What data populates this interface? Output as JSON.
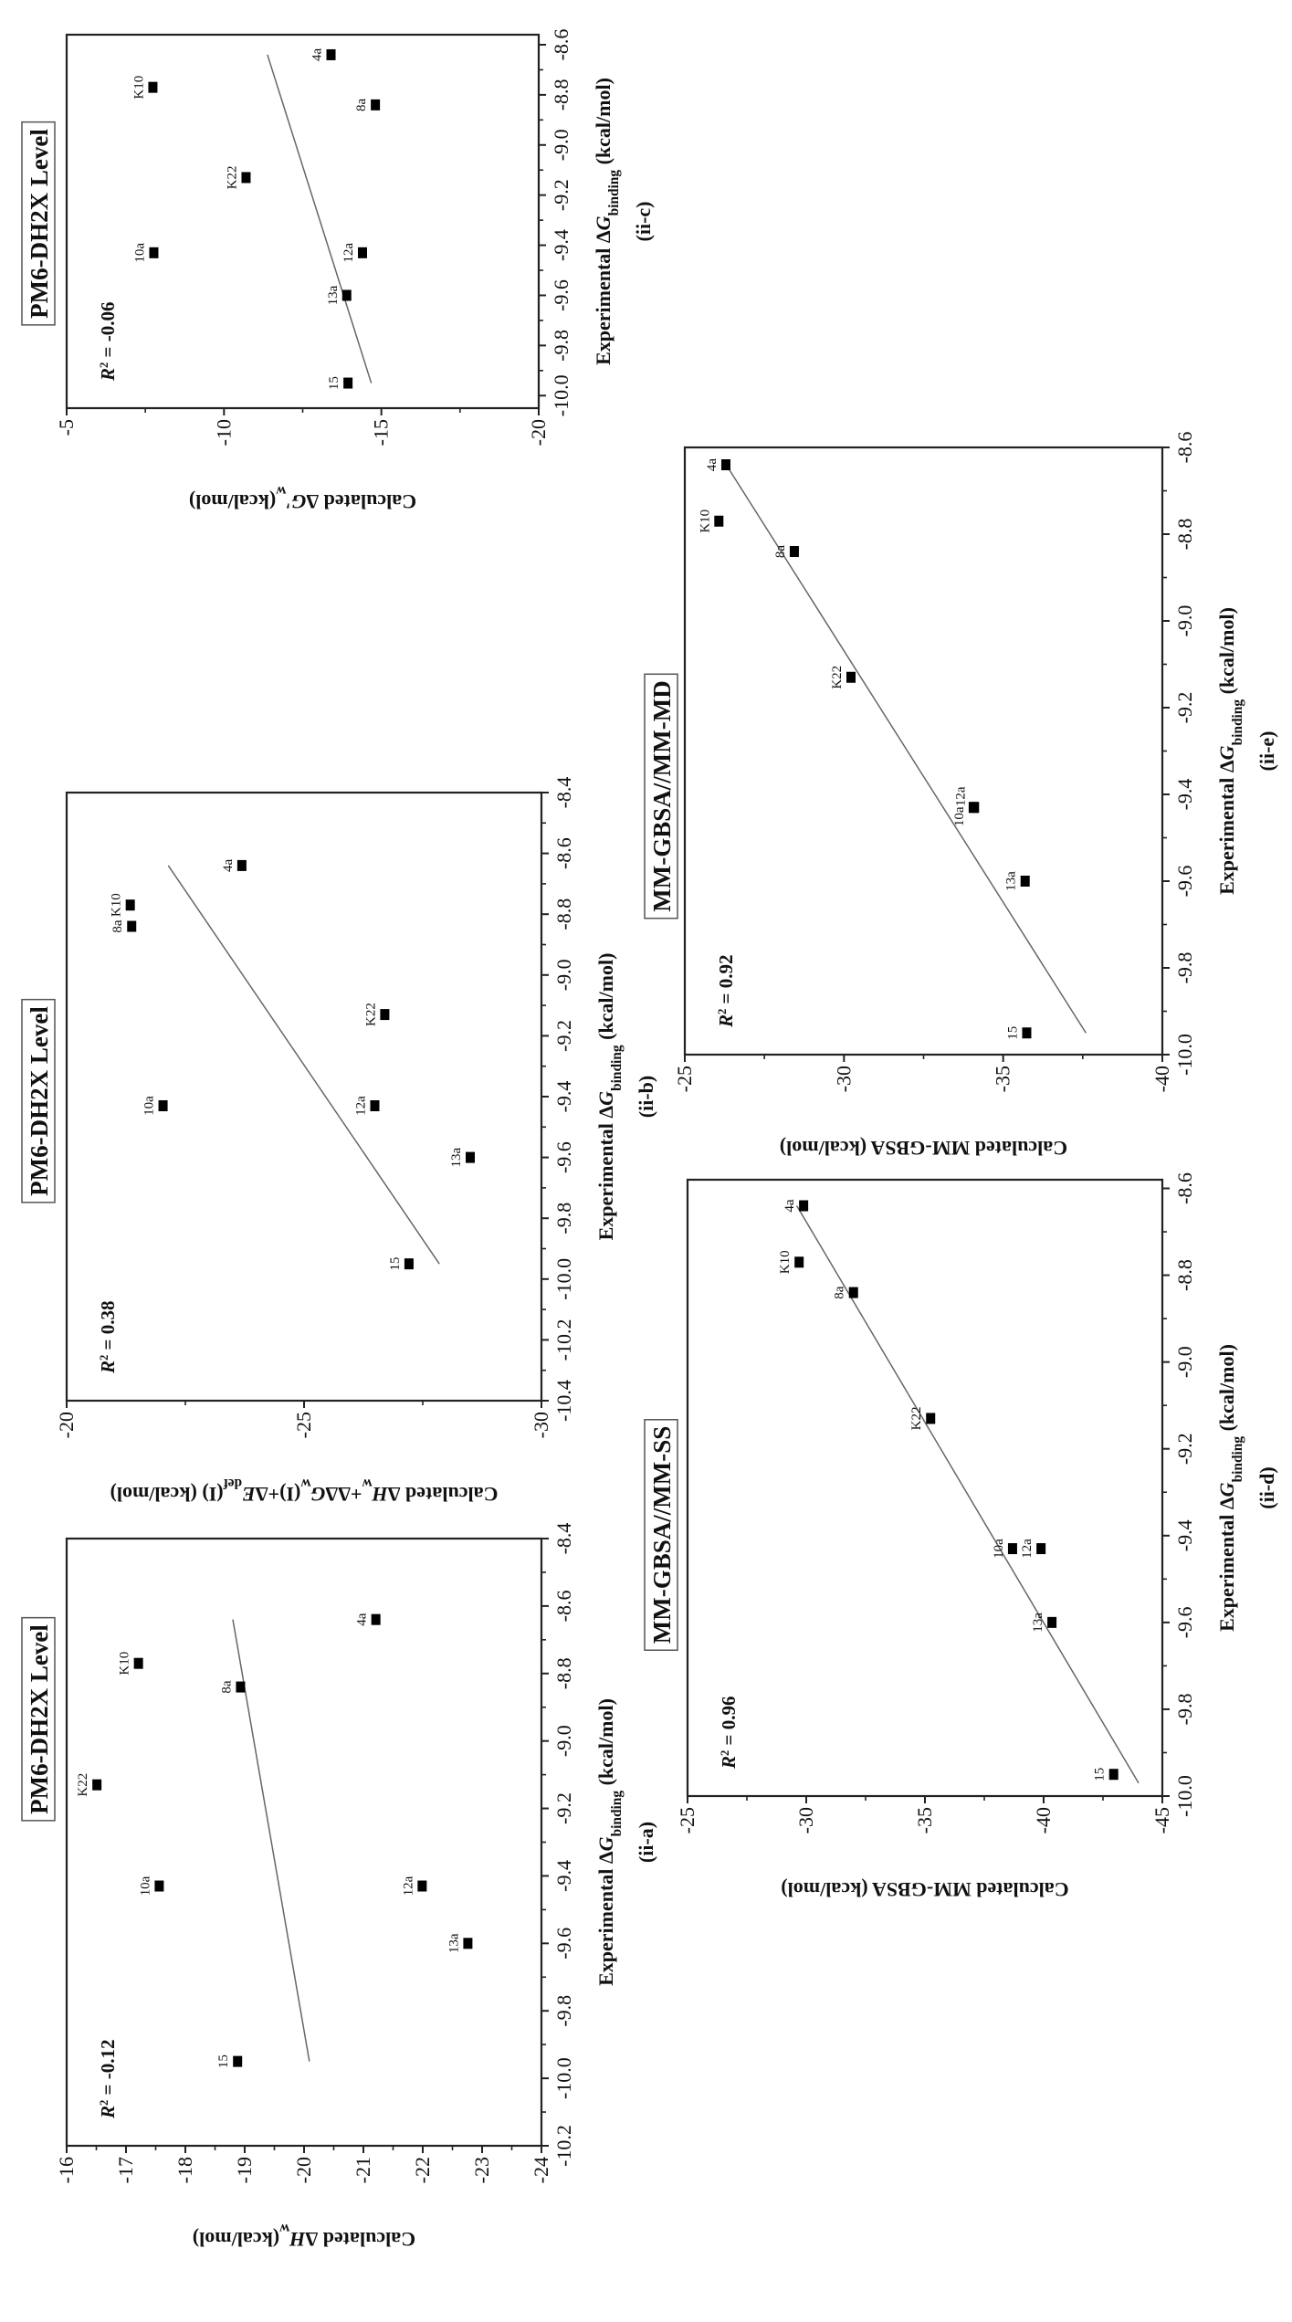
{
  "chart_data": [
    {
      "type": "scatter",
      "panel_id": "(ii-a)",
      "title": "PM6-DH2X Level",
      "r2": [
        {
          "t": "R",
          "i": true
        },
        {
          "t": "2",
          "sup": true
        },
        {
          "t": " = -0.12"
        }
      ],
      "xlabel": [
        {
          "t": "Experimental Δ"
        },
        {
          "t": "G",
          "i": true
        },
        {
          "t": "binding",
          "sub": true
        },
        {
          "t": " (kcal/mol)"
        }
      ],
      "ylabel": [
        {
          "t": "Calculated Δ"
        },
        {
          "t": "H",
          "i": true
        },
        {
          "t": "w",
          "sub": true
        },
        {
          "t": "(kcal/mol)"
        }
      ],
      "xlim": [
        -10.2,
        -8.4
      ],
      "ylim": [
        -16,
        -24
      ],
      "xticks": [
        "-10.2",
        "-10.0",
        "-9.8",
        "-9.6",
        "-9.4",
        "-9.2",
        "-9.0",
        "-8.8",
        "-8.6",
        "-8.4"
      ],
      "yticks": [
        "-16",
        "-17",
        "-18",
        "-19",
        "-20",
        "-21",
        "-22",
        "-23",
        "-24"
      ],
      "points": [
        {
          "label": "4a",
          "x": -8.64,
          "y": -21.21
        },
        {
          "label": "K10",
          "x": -8.77,
          "y": -17.21
        },
        {
          "label": "8a",
          "x": -8.84,
          "y": -18.93
        },
        {
          "label": "K22",
          "x": -9.13,
          "y": -16.51
        },
        {
          "label": "10a",
          "x": -9.43,
          "y": -17.56
        },
        {
          "label": "12a",
          "x": -9.43,
          "y": -21.99
        },
        {
          "label": "13a",
          "x": -9.6,
          "y": -22.76
        },
        {
          "label": "15",
          "x": -9.95,
          "y": -18.88
        }
      ],
      "fit_line": [
        [
          -9.95,
          -20.09
        ],
        [
          -8.64,
          -18.8
        ]
      ],
      "grid": false
    },
    {
      "type": "scatter",
      "panel_id": "(ii-b)",
      "title": "PM6-DH2X Level",
      "r2": [
        {
          "t": "R",
          "i": true
        },
        {
          "t": "2",
          "sup": true
        },
        {
          "t": " = 0.38"
        }
      ],
      "xlabel": [
        {
          "t": "Experimental Δ"
        },
        {
          "t": "G",
          "i": true
        },
        {
          "t": "binding",
          "sub": true
        },
        {
          "t": " (kcal/mol)"
        }
      ],
      "ylabel": [
        {
          "t": "Calculated Δ"
        },
        {
          "t": "H",
          "i": true
        },
        {
          "t": "w",
          "sub": true
        },
        {
          "t": "+ΔΔ"
        },
        {
          "t": "G",
          "i": true
        },
        {
          "t": "w",
          "sub": true
        },
        {
          "t": "(I)+Δ"
        },
        {
          "t": "E",
          "i": true
        },
        {
          "t": "def",
          "sub": true
        },
        {
          "t": "(I) (kcal/mol)"
        }
      ],
      "xlim": [
        -10.4,
        -8.4
      ],
      "ylim": [
        -20,
        -30
      ],
      "xticks": [
        "-10.4",
        "-10.2",
        "-10.0",
        "-9.8",
        "-9.6",
        "-9.4",
        "-9.2",
        "-9.0",
        "-8.8",
        "-8.6",
        "-8.4"
      ],
      "yticks": [
        "-20",
        "-25",
        "-30"
      ],
      "points": [
        {
          "label": "4a",
          "x": -8.64,
          "y": -23.69
        },
        {
          "label": "K10",
          "x": -8.77,
          "y": -21.34
        },
        {
          "label": "8a",
          "x": -8.84,
          "y": -21.37
        },
        {
          "label": "K22",
          "x": -9.13,
          "y": -26.7
        },
        {
          "label": "10a",
          "x": -9.43,
          "y": -22.03
        },
        {
          "label": "12a",
          "x": -9.43,
          "y": -26.49
        },
        {
          "label": "13a",
          "x": -9.6,
          "y": -28.5
        },
        {
          "label": "15",
          "x": -9.95,
          "y": -27.21
        }
      ],
      "fit_line": [
        [
          -9.95,
          -27.85
        ],
        [
          -8.64,
          -22.14
        ]
      ],
      "grid": false
    },
    {
      "type": "scatter",
      "panel_id": "(ii-c)",
      "title": "PM6-DH2X Level",
      "r2": [
        {
          "t": "R",
          "i": true
        },
        {
          "t": "2",
          "sup": true
        },
        {
          "t": " = -0.06"
        }
      ],
      "xlabel": [
        {
          "t": "Experimental Δ"
        },
        {
          "t": "G",
          "i": true
        },
        {
          "t": "binding",
          "sub": true
        },
        {
          "t": " (kcal/mol)"
        }
      ],
      "ylabel": [
        {
          "t": "Calculated Δ"
        },
        {
          "t": "G'",
          "i": true
        },
        {
          "t": "w",
          "sub": true
        },
        {
          "t": "(kcal/mol)"
        }
      ],
      "xlim": [
        -10.05,
        -8.56
      ],
      "ylim": [
        -5,
        -20
      ],
      "xticks": [
        "-10.0",
        "-9.8",
        "-9.6",
        "-9.4",
        "-9.2",
        "-9.0",
        "-8.8",
        "-8.6"
      ],
      "yticks": [
        "-5",
        "-10",
        "-15",
        "-20"
      ],
      "points": [
        {
          "label": "4a",
          "x": -8.64,
          "y": -13.4
        },
        {
          "label": "K10",
          "x": -8.77,
          "y": -7.74
        },
        {
          "label": "8a",
          "x": -8.84,
          "y": -14.81
        },
        {
          "label": "K22",
          "x": -9.13,
          "y": -10.7
        },
        {
          "label": "10a",
          "x": -9.43,
          "y": -7.77
        },
        {
          "label": "12a",
          "x": -9.43,
          "y": -14.4
        },
        {
          "label": "13a",
          "x": -9.6,
          "y": -13.9
        },
        {
          "label": "15",
          "x": -9.95,
          "y": -13.94
        }
      ],
      "fit_line": [
        [
          -9.95,
          -14.68
        ],
        [
          -8.64,
          -11.38
        ]
      ],
      "grid": false
    },
    {
      "type": "scatter",
      "panel_id": "(ii-d)",
      "title": "MM-GBSA//MM-SS",
      "r2": [
        {
          "t": "R",
          "i": true
        },
        {
          "t": "2",
          "sup": true
        },
        {
          "t": " = 0.96"
        }
      ],
      "xlabel": [
        {
          "t": "Experimental Δ"
        },
        {
          "t": "G",
          "i": true
        },
        {
          "t": "binding",
          "sub": true
        },
        {
          "t": " (kcal/mol)"
        }
      ],
      "ylabel": [
        {
          "t": "Calculated MM-GBSA (kcal/mol)"
        }
      ],
      "xlim": [
        -10.0,
        -8.58
      ],
      "ylim": [
        -25,
        -45
      ],
      "xticks": [
        "-10.0",
        "-9.8",
        "-9.6",
        "-9.4",
        "-9.2",
        "-9.0",
        "-8.8",
        "-8.6"
      ],
      "yticks": [
        "-25",
        "-30",
        "-35",
        "-40",
        "-45"
      ],
      "points": [
        {
          "label": "4a",
          "x": -8.64,
          "y": -29.89
        },
        {
          "label": "K10",
          "x": -8.77,
          "y": -29.7
        },
        {
          "label": "8a",
          "x": -8.84,
          "y": -31.99
        },
        {
          "label": "K22",
          "x": -9.13,
          "y": -35.24
        },
        {
          "label": "10a",
          "x": -9.43,
          "y": -38.69
        },
        {
          "label": "12a",
          "x": -9.43,
          "y": -39.89
        },
        {
          "label": "13a",
          "x": -9.6,
          "y": -40.35
        },
        {
          "label": "15",
          "x": -9.95,
          "y": -42.95
        }
      ],
      "fit_line": [
        [
          -9.97,
          -44.0
        ],
        [
          -8.64,
          -29.6
        ]
      ],
      "grid": false
    },
    {
      "type": "scatter",
      "panel_id": "(ii-e)",
      "title": "MM-GBSA//MM-MD",
      "r2": [
        {
          "t": "R",
          "i": true
        },
        {
          "t": "2",
          "sup": true
        },
        {
          "t": " = 0.92"
        }
      ],
      "xlabel": [
        {
          "t": "Experimental Δ"
        },
        {
          "t": "G",
          "i": true
        },
        {
          "t": "binding",
          "sub": true
        },
        {
          "t": " (kcal/mol)"
        }
      ],
      "ylabel": [
        {
          "t": "Calculated MM-GBSA (kcal/mol)"
        }
      ],
      "xlim": [
        -10.0,
        -8.6
      ],
      "ylim": [
        -25,
        -40
      ],
      "xticks": [
        "-10.0",
        "-9.8",
        "-9.6",
        "-9.4",
        "-9.2",
        "-9.0",
        "-8.8",
        "-8.6"
      ],
      "yticks": [
        "-25",
        "-30",
        "-35",
        "-40"
      ],
      "points": [
        {
          "label": "4a",
          "x": -8.64,
          "y": -26.29
        },
        {
          "label": "K10",
          "x": -8.77,
          "y": -26.07
        },
        {
          "label": "8a",
          "x": -8.84,
          "y": -28.44
        },
        {
          "label": "K22",
          "x": -9.13,
          "y": -30.22
        },
        {
          "label": "10a",
          "x": -9.43,
          "y": -34.06
        },
        {
          "label": "12a",
          "x": -9.43,
          "y": -34.1
        },
        {
          "label": "13a",
          "x": -9.6,
          "y": -35.69
        },
        {
          "label": "15",
          "x": -9.95,
          "y": -35.74
        }
      ],
      "fit_line": [
        [
          -9.95,
          -37.6
        ],
        [
          -8.64,
          -26.3
        ]
      ],
      "grid": false
    }
  ]
}
